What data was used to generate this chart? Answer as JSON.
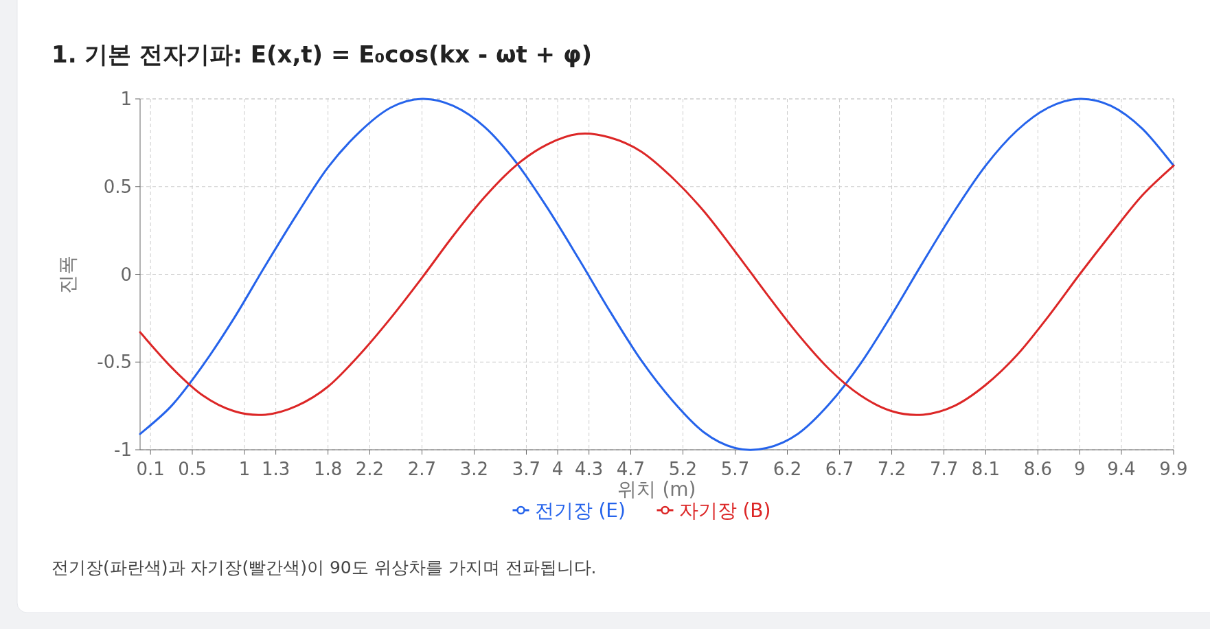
{
  "chart_data": {
    "type": "line",
    "title": "1. 기본 전자기파: E(x,t) = E₀cos(kx - ωt + φ)",
    "xlabel": "위치 (m)",
    "ylabel": "진폭",
    "x": [
      0,
      0.3,
      0.6,
      0.9,
      1.2,
      1.5,
      1.8,
      2.1,
      2.4,
      2.7,
      3.0,
      3.3,
      3.6,
      3.9,
      4.2,
      4.5,
      4.8,
      5.1,
      5.4,
      5.7,
      6.0,
      6.3,
      6.6,
      6.9,
      7.2,
      7.5,
      7.8,
      8.1,
      8.4,
      8.7,
      9.0,
      9.3,
      9.6,
      9.9
    ],
    "series": [
      {
        "name": "전기장 (E)",
        "color": "#2563eb",
        "values": [
          -0.91,
          -0.75,
          -0.52,
          -0.25,
          0.05,
          0.34,
          0.61,
          0.81,
          0.95,
          1.0,
          0.96,
          0.84,
          0.64,
          0.38,
          0.09,
          -0.21,
          -0.49,
          -0.72,
          -0.9,
          -0.99,
          -0.99,
          -0.91,
          -0.74,
          -0.51,
          -0.23,
          0.07,
          0.36,
          0.62,
          0.82,
          0.95,
          1.0,
          0.96,
          0.83,
          0.62
        ]
      },
      {
        "name": "자기장 (B)",
        "color": "#dc2626",
        "values": [
          -0.33,
          -0.53,
          -0.69,
          -0.78,
          -0.8,
          -0.75,
          -0.64,
          -0.46,
          -0.25,
          -0.02,
          0.22,
          0.44,
          0.62,
          0.74,
          0.8,
          0.78,
          0.7,
          0.55,
          0.36,
          0.13,
          -0.11,
          -0.34,
          -0.54,
          -0.69,
          -0.78,
          -0.8,
          -0.75,
          -0.63,
          -0.46,
          -0.24,
          0.0,
          0.23,
          0.45,
          0.62
        ]
      }
    ],
    "xlim": [
      0,
      9.9
    ],
    "ylim": [
      -1,
      1
    ],
    "xticks": [
      0.1,
      0.5,
      1,
      1.3,
      1.8,
      2.2,
      2.7,
      3.2,
      3.7,
      4,
      4.3,
      4.7,
      5.2,
      5.7,
      6.2,
      6.7,
      7.2,
      7.7,
      8.1,
      8.6,
      9,
      9.4,
      9.9
    ],
    "yticks": [
      -1,
      -0.5,
      0,
      0.5,
      1
    ],
    "grid": true,
    "legend": "bottom",
    "line_style": "solid",
    "annotations": [
      "전기장(파란색)과 자기장(빨간색)이 90도 위상차를 가지며 전파됩니다."
    ]
  }
}
